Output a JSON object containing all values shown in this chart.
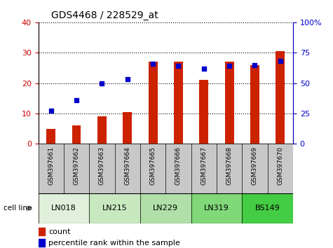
{
  "title": "GDS4468 / 228529_at",
  "categories": [
    "GSM397661",
    "GSM397662",
    "GSM397663",
    "GSM397664",
    "GSM397665",
    "GSM397666",
    "GSM397667",
    "GSM397668",
    "GSM397669",
    "GSM397670"
  ],
  "count_values": [
    5,
    6,
    9,
    10.5,
    27,
    27,
    21,
    27,
    26,
    30.5
  ],
  "percentile_values": [
    27.5,
    36,
    50,
    53,
    66,
    64,
    62,
    64,
    65,
    68
  ],
  "cell_lines": [
    {
      "label": "LN018",
      "start": 0,
      "end": 2,
      "color": "#e0f0da"
    },
    {
      "label": "LN215",
      "start": 2,
      "end": 4,
      "color": "#c8e8c0"
    },
    {
      "label": "LN229",
      "start": 4,
      "end": 6,
      "color": "#b0e0a8"
    },
    {
      "label": "LN319",
      "start": 6,
      "end": 8,
      "color": "#80d878"
    },
    {
      "label": "BS149",
      "start": 8,
      "end": 10,
      "color": "#44cc44"
    }
  ],
  "bar_color": "#cc2200",
  "dot_color": "#0000cc",
  "left_ylim": [
    0,
    40
  ],
  "right_ylim": [
    0,
    100
  ],
  "left_yticks": [
    0,
    10,
    20,
    30,
    40
  ],
  "right_yticks": [
    0,
    25,
    50,
    75,
    100
  ],
  "right_yticklabels": [
    "0",
    "25",
    "50",
    "75",
    "100%"
  ],
  "left_ytick_color": "#cc0000",
  "right_ytick_color": "#0000cc",
  "grid_color": "#000000",
  "bg_color": "#ffffff",
  "xlabel_area_color": "#c8c8c8",
  "legend_count_color": "#cc2200",
  "legend_pct_color": "#0000cc",
  "bar_width": 0.35
}
